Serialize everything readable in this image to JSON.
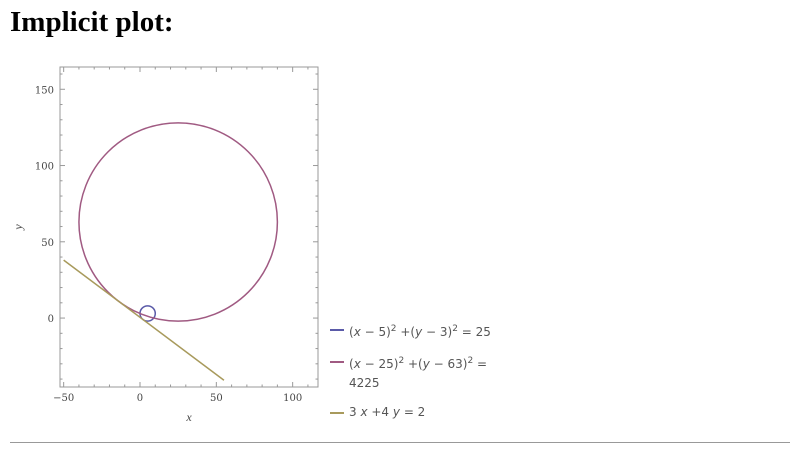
{
  "title": "Implicit plot:",
  "chart_data": {
    "type": "line",
    "title": "",
    "xlabel": "x",
    "ylabel": "y",
    "xlim": [
      -52.4,
      116.6
    ],
    "ylim": [
      -45.2,
      164.6
    ],
    "xticks": [
      -50,
      0,
      50,
      100
    ],
    "yticks": [
      0,
      50,
      100,
      150
    ],
    "grid": false,
    "legend_placement": "right-bottom",
    "series": [
      {
        "name": "(x − 5)^2 + (y − 3)^2 = 25",
        "kind": "circle",
        "center": [
          5,
          3
        ],
        "radius": 5,
        "color": "#5a5aa8"
      },
      {
        "name": "(x − 25)^2 + (y − 63)^2 = 4225",
        "kind": "circle",
        "center": [
          25,
          63
        ],
        "radius": 65,
        "color": "#a05a82"
      },
      {
        "name": "3 x + 4 y = 2",
        "kind": "line",
        "x": [
          -50,
          55
        ],
        "y": [
          38,
          -40.75
        ],
        "color": "#a89a5c"
      }
    ]
  },
  "legend": [
    {
      "html": "(<i>x</i> − 5)<sup>2</sup> +(<i>y</i> − 3)<sup>2</sup> = 25"
    },
    {
      "html": "(<i>x</i> − 25)<sup>2</sup> +(<i>y</i> − 63)<sup>2</sup> =<br>4225"
    },
    {
      "html": "3 <i>x</i> +4 <i>y</i> = 2"
    }
  ]
}
